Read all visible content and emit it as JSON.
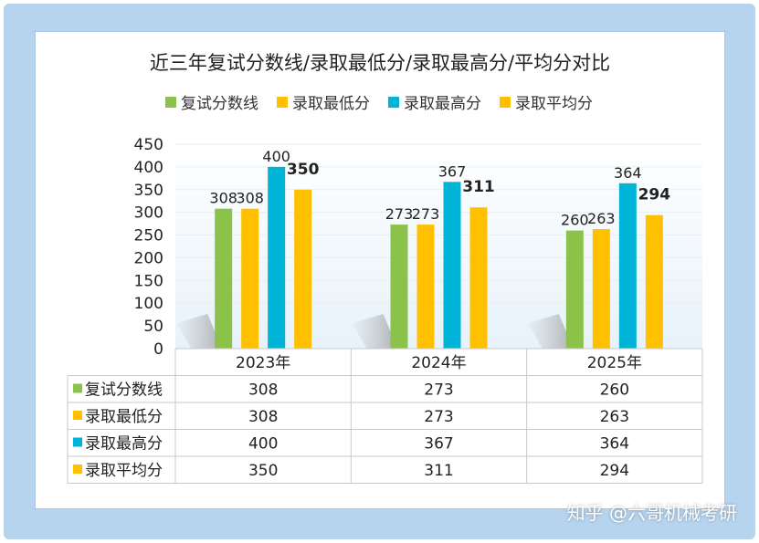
{
  "chart_data": {
    "type": "bar",
    "title": "近三年复试分数线/录取最低分/录取最高分/平均分对比",
    "categories": [
      "2023年",
      "2024年",
      "2025年"
    ],
    "series": [
      {
        "name": "复试分数线",
        "color": "#8bc34a",
        "values": [
          308,
          273,
          260
        ]
      },
      {
        "name": "录取最低分",
        "color": "#ffc000",
        "values": [
          308,
          273,
          263
        ]
      },
      {
        "name": "录取最高分",
        "color": "#00b4d8",
        "values": [
          400,
          367,
          364
        ]
      },
      {
        "name": "录取平均分",
        "color": "#ffc000",
        "values": [
          350,
          311,
          294
        ]
      }
    ],
    "ylim": [
      0,
      450
    ],
    "yticks": [
      "0",
      "50",
      "100",
      "150",
      "200",
      "250",
      "300",
      "350",
      "400",
      "450"
    ],
    "legend": "top",
    "data_table": true
  },
  "watermark": "知乎 @六哥机械考研"
}
